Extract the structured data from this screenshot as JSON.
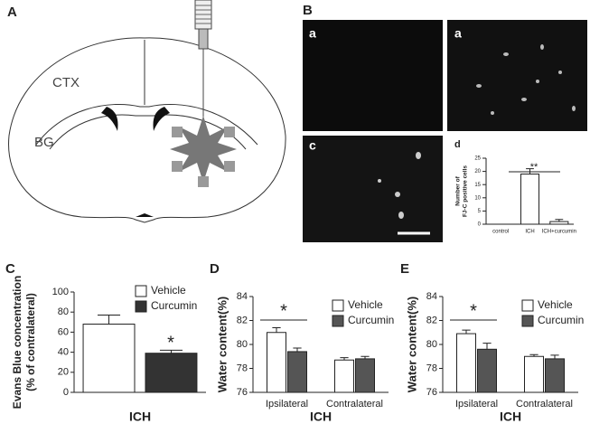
{
  "figure": {
    "panel_a": {
      "label": "A",
      "regions": [
        "CTX",
        "BG"
      ]
    },
    "panel_b": {
      "label": "B",
      "images": [
        "a",
        "a",
        "c"
      ]
    }
  },
  "chart_data": [
    {
      "type": "bar",
      "panel_label": "d",
      "ylabel_lines": [
        "Number of",
        "FJ-C positive cells"
      ],
      "categories": [
        "control",
        "ICH",
        "ICH+curcumin"
      ],
      "values": [
        0,
        19,
        1
      ],
      "errors": [
        null,
        2,
        0.8
      ],
      "color": "#ffffff",
      "ylim": [
        0,
        25
      ],
      "yticks": [
        0,
        5,
        10,
        15,
        20,
        25
      ],
      "annotation": "**"
    },
    {
      "type": "bar",
      "panel_label": "C",
      "ylabel_lines": [
        "Evans Blue concentration",
        "(% of contralateral)"
      ],
      "xlabel": "ICH",
      "categories": [
        null
      ],
      "series": [
        {
          "name": "Vehicle",
          "color": "#ffffff",
          "values": [
            68
          ],
          "errors": [
            9
          ]
        },
        {
          "name": "Curcumin",
          "color": "#333333",
          "values": [
            39
          ],
          "errors": [
            3
          ]
        }
      ],
      "ylim": [
        0,
        100
      ],
      "yticks": [
        0,
        20,
        40,
        60,
        80,
        100
      ],
      "annotation": "*"
    },
    {
      "type": "bar",
      "panel_label": "D",
      "ylabel": "Water content(%)",
      "xlabel": "ICH",
      "categories": [
        "Ipsilateral",
        "Contralateral"
      ],
      "series": [
        {
          "name": "Vehicle",
          "color": "#ffffff",
          "values": [
            81.0,
            78.7
          ],
          "errors": [
            0.4,
            0.2
          ]
        },
        {
          "name": "Curcumin",
          "color": "#555555",
          "values": [
            79.4,
            78.8
          ],
          "errors": [
            0.3,
            0.2
          ]
        }
      ],
      "ylim": [
        76,
        84
      ],
      "yticks": [
        76,
        78,
        80,
        82,
        84
      ],
      "annotation": "*"
    },
    {
      "type": "bar",
      "panel_label": "E",
      "ylabel": "Water content(%)",
      "xlabel": "ICH",
      "categories": [
        "Ipsilateral",
        "Contralateral"
      ],
      "series": [
        {
          "name": "Vehicle",
          "color": "#ffffff",
          "values": [
            80.9,
            79.0
          ],
          "errors": [
            0.3,
            0.15
          ]
        },
        {
          "name": "Curcumin",
          "color": "#555555",
          "values": [
            79.6,
            78.8
          ],
          "errors": [
            0.5,
            0.3
          ]
        }
      ],
      "ylim": [
        76,
        84
      ],
      "yticks": [
        76,
        78,
        80,
        82,
        84
      ],
      "annotation": "*"
    }
  ]
}
